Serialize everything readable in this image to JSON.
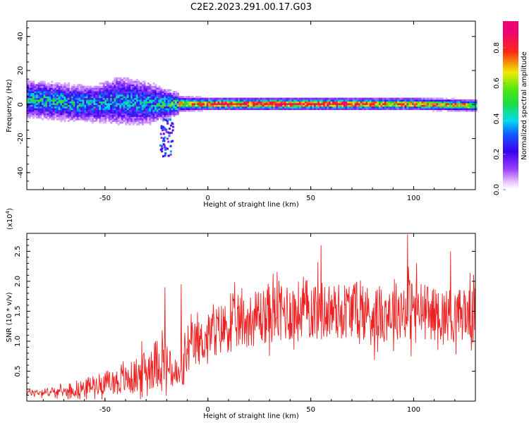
{
  "figure": {
    "title": "C2E2.2023.291.00.17.G03"
  },
  "chart_data": [
    {
      "type": "heatmap",
      "xlabel": "Height of straight line (km)",
      "ylabel": "Frequency (Hz)",
      "xlim": [
        -88,
        130
      ],
      "ylim": [
        -50,
        49
      ],
      "xticks": [
        -50,
        0,
        50,
        100
      ],
      "yticks": [
        -40,
        -20,
        0,
        20,
        40
      ],
      "colorbar": {
        "label": "Normalized spectral amplitude",
        "range": [
          0.0,
          0.95
        ],
        "ticks": [
          0.0,
          0.2,
          0.4,
          0.6,
          0.8
        ],
        "colormap": "rainbow (white-violet-blue-cyan-green-yellow-red-magenta)"
      },
      "ridge": {
        "description": "narrow band near 0 Hz; broad scattered spread (about -10 to +12 Hz) between -88 and -15 km, tight band (about -3 to +3 Hz) from -15 to 130 km",
        "points": [
          {
            "x": -88,
            "center": 3,
            "halfwidth": 7,
            "peak": 0.45
          },
          {
            "x": -70,
            "center": 1,
            "halfwidth": 7,
            "peak": 0.45
          },
          {
            "x": -55,
            "center": 0,
            "halfwidth": 7,
            "peak": 0.4
          },
          {
            "x": -45,
            "center": 2,
            "halfwidth": 9,
            "peak": 0.4
          },
          {
            "x": -35,
            "center": 1,
            "halfwidth": 9,
            "peak": 0.4
          },
          {
            "x": -25,
            "center": 0,
            "halfwidth": 7,
            "peak": 0.42
          },
          {
            "x": -15,
            "center": 0,
            "halfwidth": 4,
            "peak": 0.55
          },
          {
            "x": 0,
            "center": 0,
            "halfwidth": 3,
            "peak": 0.8
          },
          {
            "x": 25,
            "center": 0,
            "halfwidth": 3,
            "peak": 0.9
          },
          {
            "x": 50,
            "center": 0,
            "halfwidth": 3,
            "peak": 0.88
          },
          {
            "x": 75,
            "center": 0,
            "halfwidth": 3,
            "peak": 0.8
          },
          {
            "x": 100,
            "center": 0,
            "halfwidth": 3,
            "peak": 0.72
          },
          {
            "x": 130,
            "center": -1,
            "halfwidth": 3,
            "peak": 0.6
          }
        ],
        "tail": {
          "x_range": [
            -24,
            -18
          ],
          "y_range": [
            -30,
            -8
          ]
        }
      }
    },
    {
      "type": "line",
      "xlabel": "Height of straight line (km)",
      "ylabel": "SNR (10 * v/v)",
      "y_multiplier": "(x10",
      "y_multiplier_exp": "4",
      "y_multiplier_close": ")",
      "xlim": [
        -88,
        130
      ],
      "ylim": [
        0,
        2.8
      ],
      "xticks": [
        -50,
        0,
        50,
        100
      ],
      "yticks": [
        0.5,
        1.0,
        1.5,
        2.0,
        2.5
      ],
      "ytick_labels": [
        "0.5",
        "1.0",
        "1.5",
        "2.0",
        "2.5"
      ],
      "color": "#ee2020",
      "series": [
        {
          "x": [
            -88,
            -80,
            -70,
            -62,
            -55,
            -48,
            -40,
            -33,
            -27,
            -22,
            -18,
            -14,
            -10,
            -6,
            -2,
            2,
            6,
            10,
            15,
            20,
            25,
            30,
            35,
            40,
            45,
            50,
            55,
            60,
            65,
            70,
            75,
            80,
            85,
            90,
            95,
            100,
            105,
            110,
            115,
            120,
            125,
            130
          ],
          "mean": [
            0.15,
            0.15,
            0.16,
            0.2,
            0.28,
            0.32,
            0.35,
            0.45,
            0.6,
            0.7,
            0.5,
            0.4,
            0.8,
            0.95,
            1.0,
            1.15,
            1.2,
            1.25,
            1.3,
            1.35,
            1.4,
            1.45,
            1.5,
            1.5,
            1.5,
            1.55,
            1.5,
            1.5,
            1.5,
            1.55,
            1.5,
            1.45,
            1.45,
            1.5,
            1.55,
            1.55,
            1.5,
            1.45,
            1.45,
            1.45,
            1.45,
            1.45
          ],
          "spread": [
            0.08,
            0.08,
            0.1,
            0.15,
            0.2,
            0.25,
            0.3,
            0.4,
            0.5,
            0.55,
            0.4,
            0.35,
            0.45,
            0.5,
            0.45,
            0.5,
            0.55,
            0.55,
            0.55,
            0.55,
            0.6,
            0.6,
            0.65,
            0.65,
            0.65,
            0.65,
            0.65,
            0.6,
            0.6,
            0.6,
            0.6,
            0.6,
            0.6,
            0.6,
            0.65,
            0.7,
            0.6,
            0.55,
            0.55,
            0.55,
            0.55,
            0.55
          ]
        }
      ],
      "notable_peaks": [
        {
          "x": -21,
          "y": 1.9
        },
        {
          "x": -13,
          "y": 1.95
        },
        {
          "x": 55,
          "y": 2.6
        },
        {
          "x": 97,
          "y": 2.78
        },
        {
          "x": 118,
          "y": 2.5
        }
      ]
    }
  ]
}
